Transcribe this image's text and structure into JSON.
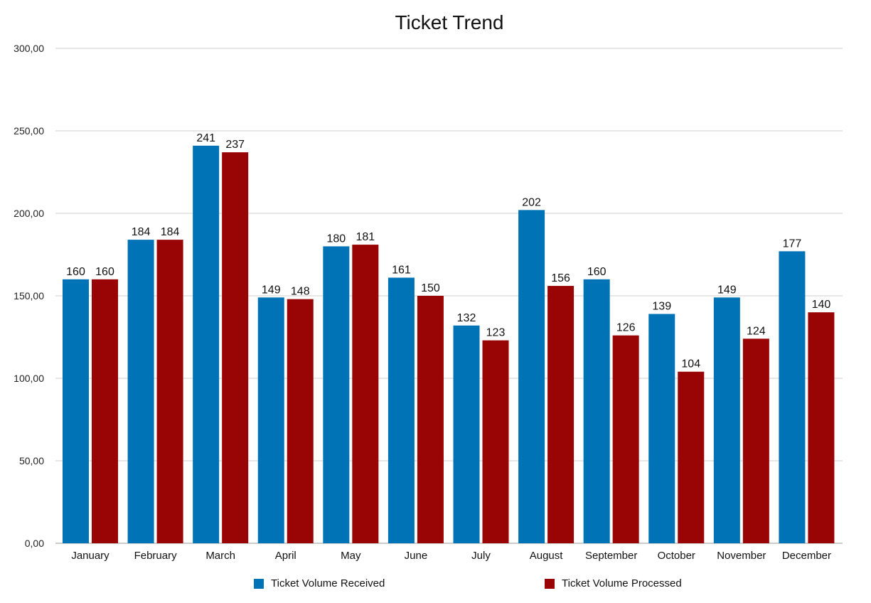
{
  "chart_data": {
    "type": "bar",
    "title": "Ticket Trend",
    "xlabel": "",
    "ylabel": "",
    "ylim": [
      0,
      300
    ],
    "yticks": [
      "0,00",
      "50,00",
      "100,00",
      "150,00",
      "200,00",
      "250,00",
      "300,00"
    ],
    "categories": [
      "January",
      "February",
      "March",
      "April",
      "May",
      "June",
      "July",
      "August",
      "September",
      "October",
      "November",
      "December"
    ],
    "series": [
      {
        "name": "Ticket Volume Received",
        "color": "#0073b7",
        "values": [
          160,
          184,
          241,
          149,
          180,
          161,
          132,
          202,
          160,
          139,
          149,
          177
        ]
      },
      {
        "name": "Ticket Volume Processed",
        "color": "#990505",
        "values": [
          160,
          184,
          237,
          148,
          181,
          150,
          123,
          156,
          126,
          104,
          124,
          140
        ]
      }
    ],
    "grid": true,
    "legend_position": "bottom"
  }
}
